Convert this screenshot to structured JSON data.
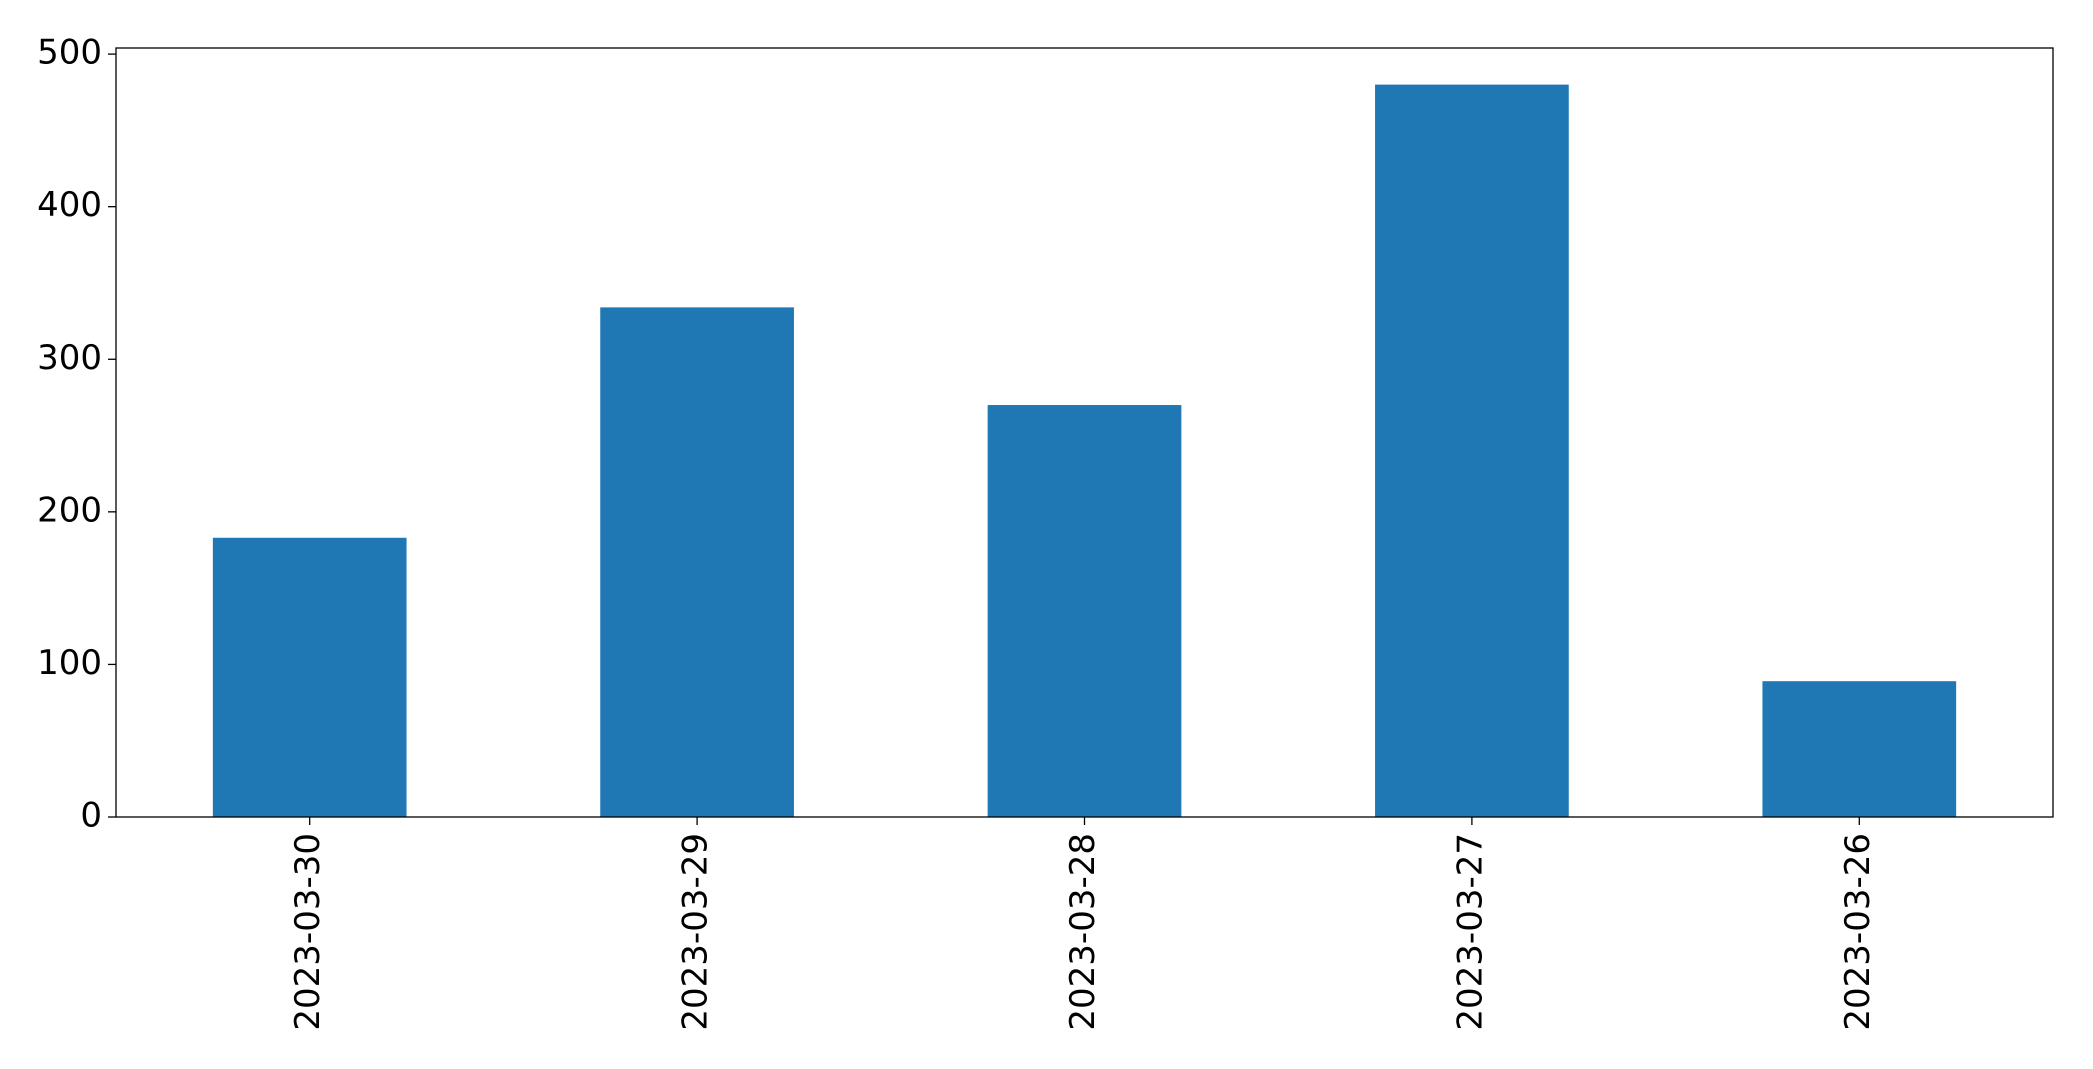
{
  "chart_data": {
    "type": "bar",
    "categories": [
      "2023-03-30",
      "2023-03-29",
      "2023-03-28",
      "2023-03-27",
      "2023-03-26"
    ],
    "values": [
      183,
      334,
      270,
      480,
      89
    ],
    "color": "#1f77b4",
    "ylim": [
      0,
      504
    ],
    "yticks": [
      0,
      100,
      200,
      300,
      400,
      500
    ],
    "grid": false
  }
}
